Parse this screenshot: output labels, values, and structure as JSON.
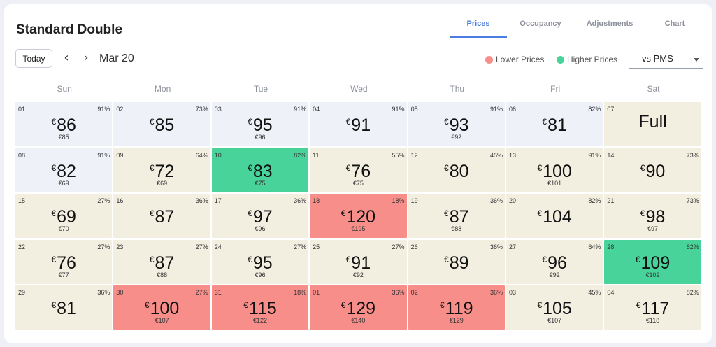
{
  "title": "Standard Double",
  "tabs": [
    {
      "label": "Prices",
      "active": true
    },
    {
      "label": "Occupancy",
      "active": false
    },
    {
      "label": "Adjustments",
      "active": false
    },
    {
      "label": "Chart",
      "active": false
    }
  ],
  "toolbar": {
    "today_label": "Today",
    "prev_icon": "‹",
    "next_icon": "›",
    "month": "Mar 20"
  },
  "legend": {
    "lower_label": "Lower Prices",
    "lower_color": "#f78e8a",
    "higher_label": "Higher Prices",
    "higher_color": "#48d39a"
  },
  "compare_select": {
    "value": "vs PMS"
  },
  "currency": "€",
  "weekdays": [
    "Sun",
    "Mon",
    "Tue",
    "Wed",
    "Thu",
    "Fri",
    "Sat"
  ],
  "days": [
    {
      "day": "01",
      "occ": "91%",
      "price": "86",
      "pms": "€85",
      "status": "blue"
    },
    {
      "day": "02",
      "occ": "73%",
      "price": "85",
      "pms": "",
      "status": "blue"
    },
    {
      "day": "03",
      "occ": "91%",
      "price": "95",
      "pms": "€96",
      "status": "blue"
    },
    {
      "day": "04",
      "occ": "91%",
      "price": "91",
      "pms": "",
      "status": "blue"
    },
    {
      "day": "05",
      "occ": "91%",
      "price": "93",
      "pms": "€92",
      "status": "blue"
    },
    {
      "day": "06",
      "occ": "82%",
      "price": "81",
      "pms": "",
      "status": "blue"
    },
    {
      "day": "07",
      "occ": "",
      "price": "",
      "pms": "",
      "status": "beige",
      "full": "Full"
    },
    {
      "day": "08",
      "occ": "91%",
      "price": "82",
      "pms": "€69",
      "status": "blue"
    },
    {
      "day": "09",
      "occ": "64%",
      "price": "72",
      "pms": "€69",
      "status": "beige"
    },
    {
      "day": "10",
      "occ": "82%",
      "price": "83",
      "pms": "€75",
      "status": "green"
    },
    {
      "day": "11",
      "occ": "55%",
      "price": "76",
      "pms": "€75",
      "status": "beige"
    },
    {
      "day": "12",
      "occ": "45%",
      "price": "80",
      "pms": "",
      "status": "beige"
    },
    {
      "day": "13",
      "occ": "91%",
      "price": "100",
      "pms": "€101",
      "status": "beige"
    },
    {
      "day": "14",
      "occ": "73%",
      "price": "90",
      "pms": "",
      "status": "beige"
    },
    {
      "day": "15",
      "occ": "27%",
      "price": "69",
      "pms": "€70",
      "status": "beige"
    },
    {
      "day": "16",
      "occ": "36%",
      "price": "87",
      "pms": "",
      "status": "beige"
    },
    {
      "day": "17",
      "occ": "36%",
      "price": "97",
      "pms": "€96",
      "status": "beige"
    },
    {
      "day": "18",
      "occ": "18%",
      "price": "120",
      "pms": "€195",
      "status": "red"
    },
    {
      "day": "19",
      "occ": "36%",
      "price": "87",
      "pms": "€88",
      "status": "beige"
    },
    {
      "day": "20",
      "occ": "82%",
      "price": "104",
      "pms": "",
      "status": "beige"
    },
    {
      "day": "21",
      "occ": "73%",
      "price": "98",
      "pms": "€97",
      "status": "beige"
    },
    {
      "day": "22",
      "occ": "27%",
      "price": "76",
      "pms": "€77",
      "status": "beige"
    },
    {
      "day": "23",
      "occ": "27%",
      "price": "87",
      "pms": "€88",
      "status": "beige"
    },
    {
      "day": "24",
      "occ": "27%",
      "price": "95",
      "pms": "€96",
      "status": "beige"
    },
    {
      "day": "25",
      "occ": "27%",
      "price": "91",
      "pms": "€92",
      "status": "beige"
    },
    {
      "day": "26",
      "occ": "36%",
      "price": "89",
      "pms": "",
      "status": "beige"
    },
    {
      "day": "27",
      "occ": "64%",
      "price": "96",
      "pms": "€92",
      "status": "beige"
    },
    {
      "day": "28",
      "occ": "82%",
      "price": "109",
      "pms": "€102",
      "status": "green"
    },
    {
      "day": "29",
      "occ": "36%",
      "price": "81",
      "pms": "",
      "status": "beige"
    },
    {
      "day": "30",
      "occ": "27%",
      "price": "100",
      "pms": "€107",
      "status": "red"
    },
    {
      "day": "31",
      "occ": "18%",
      "price": "115",
      "pms": "€122",
      "status": "red"
    },
    {
      "day": "01",
      "occ": "36%",
      "price": "129",
      "pms": "€140",
      "status": "red"
    },
    {
      "day": "02",
      "occ": "36%",
      "price": "119",
      "pms": "€129",
      "status": "red"
    },
    {
      "day": "03",
      "occ": "45%",
      "price": "105",
      "pms": "€107",
      "status": "beige"
    },
    {
      "day": "04",
      "occ": "82%",
      "price": "117",
      "pms": "€118",
      "status": "beige"
    }
  ]
}
